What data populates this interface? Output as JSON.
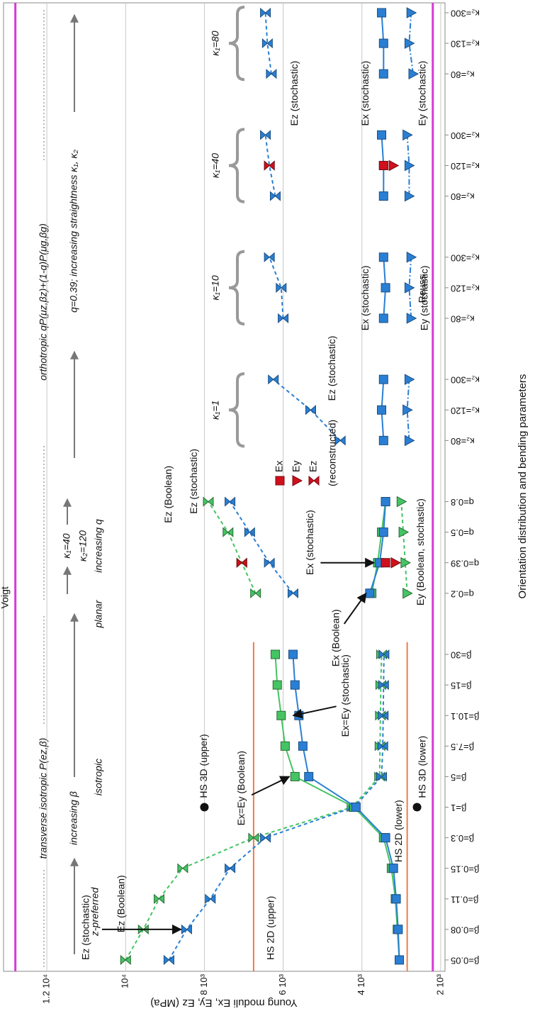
{
  "chart_data": {
    "type": "line",
    "x_label": "Orientation distribution and bending parameters",
    "y_label": "Young moduli Ex, Ey, Ez (MPa)",
    "categories": [
      "β=0.05",
      "β=0.08",
      "β=0.11",
      "β=0.15",
      "β=0.3",
      "β=1",
      "β=5",
      "β=7.5",
      "β=10.1",
      "β=15",
      "β=30",
      null,
      "q=0.2",
      "q=0.39",
      "q=0.5",
      "q=0.8",
      null,
      "κ₂=80",
      "κ₂=120",
      "κ₂=300",
      null,
      "κ₂=80",
      "κ₂=120",
      "κ₂=300",
      null,
      "κ₂=80",
      "κ₂=120",
      "κ₂=300",
      null,
      "κ₂=80",
      "κ₂=130",
      "κ₂=300"
    ],
    "ylim": [
      1890,
      13100
    ],
    "yticks": [
      {
        "value": 2000,
        "label": "2 10³"
      },
      {
        "value": 4000,
        "label": "4 10³"
      },
      {
        "value": 6000,
        "label": "6 10³"
      },
      {
        "value": 8000,
        "label": "8 10³"
      },
      {
        "value": 10000,
        "label": "10⁴"
      },
      {
        "value": 12000,
        "label": "1.2 10⁴"
      }
    ],
    "grid": true,
    "series": [
      {
        "name": "Ez (Boolean)",
        "color": "#45c463",
        "marker": "hourglass",
        "dash": "dashed",
        "values": [
          10000,
          9550,
          9150,
          8550,
          6750,
          4250,
          3550,
          3540,
          3530,
          3520,
          3500,
          null,
          6700,
          7050,
          7400,
          7900,
          null,
          null,
          null,
          null,
          null,
          null,
          null,
          null,
          null,
          null,
          null,
          null,
          null,
          null,
          null,
          null
        ]
      },
      {
        "name": "Ez (stochastic)",
        "color": "#2a7fd4",
        "marker": "hourglass",
        "dash": "dashed",
        "values": [
          8900,
          8450,
          7850,
          7350,
          6450,
          4200,
          3500,
          3470,
          3460,
          3450,
          3440,
          null,
          5750,
          6350,
          6850,
          7350,
          null,
          4550,
          5300,
          6250,
          null,
          6000,
          6050,
          6350,
          null,
          6200,
          6350,
          6450,
          null,
          6300,
          6400,
          6450
        ]
      },
      {
        "name": "Ex=Ey (Boolean)",
        "color": "#45c463",
        "marker": "square",
        "dash": "solid",
        "values": [
          3050,
          3100,
          3150,
          3250,
          3450,
          4200,
          5700,
          5950,
          6050,
          6150,
          6200,
          null,
          3750,
          3600,
          3500,
          3400,
          null,
          null,
          null,
          null,
          null,
          null,
          null,
          null,
          null,
          null,
          null,
          null,
          null,
          null,
          null,
          null
        ]
      },
      {
        "name": "Ex=Ey (stochastic)",
        "color": "#2a7fd4",
        "marker": "square",
        "dash": "solid",
        "values": [
          3050,
          3080,
          3130,
          3200,
          3400,
          4150,
          5350,
          5500,
          5600,
          5700,
          5750,
          null,
          3800,
          3550,
          3450,
          3400,
          null,
          3450,
          3500,
          3450,
          null,
          3450,
          3400,
          3450,
          null,
          3450,
          3450,
          3500,
          null,
          3450,
          3450,
          3500
        ]
      },
      {
        "name": "Ey (Boolean, stochastic)",
        "color": "#45c463",
        "marker": "triangle",
        "dash": "dashed",
        "values": [
          null,
          null,
          null,
          null,
          null,
          null,
          null,
          null,
          null,
          null,
          null,
          null,
          2850,
          2900,
          2950,
          3000,
          null,
          null,
          null,
          null,
          null,
          null,
          null,
          null,
          null,
          null,
          null,
          null,
          null,
          null,
          null,
          null
        ]
      },
      {
        "name": "Ey (stochastic)",
        "color": "#2a7fd4",
        "marker": "triangle",
        "dash": "dashdot",
        "values": [
          null,
          null,
          null,
          null,
          null,
          null,
          null,
          null,
          null,
          null,
          null,
          null,
          null,
          null,
          null,
          null,
          null,
          2800,
          2850,
          2800,
          null,
          2750,
          2800,
          2750,
          null,
          2800,
          2800,
          2850,
          null,
          2700,
          2800,
          2750
        ]
      },
      {
        "name": "Ex",
        "color": "#d0101c",
        "marker": "square",
        "dash": "none",
        "values": [
          null,
          null,
          null,
          null,
          null,
          null,
          null,
          null,
          null,
          null,
          null,
          null,
          null,
          3400,
          null,
          null,
          null,
          null,
          null,
          null,
          null,
          null,
          null,
          null,
          null,
          null,
          3450,
          null,
          null,
          null,
          null,
          null
        ]
      },
      {
        "name": "Ey",
        "color": "#d0101c",
        "marker": "triangle",
        "dash": "none",
        "values": [
          null,
          null,
          null,
          null,
          null,
          null,
          null,
          null,
          null,
          null,
          null,
          null,
          null,
          3150,
          null,
          null,
          null,
          null,
          null,
          null,
          null,
          null,
          null,
          null,
          null,
          null,
          3200,
          null,
          null,
          null,
          null,
          null
        ]
      },
      {
        "name": "Ez",
        "color": "#d0101c",
        "marker": "hourglass",
        "dash": "none",
        "values": [
          null,
          null,
          null,
          null,
          null,
          null,
          null,
          null,
          null,
          null,
          null,
          null,
          null,
          7050,
          null,
          null,
          null,
          null,
          null,
          null,
          null,
          null,
          null,
          null,
          null,
          null,
          6350,
          null,
          null,
          null,
          null,
          null
        ]
      }
    ],
    "legend": {
      "title": "(reconstructed)"
    },
    "reference_lines": [
      {
        "name": "Voigt",
        "value": 12800,
        "color": "#d63ad6"
      },
      {
        "name": "Reuss",
        "value": 2200,
        "color": "#d63ad6"
      },
      {
        "name": "HS 2D (upper)",
        "value": 6750,
        "color": "#f07a4a",
        "from": "β=0.05",
        "to": "β=30"
      },
      {
        "name": "HS 2D (lower)",
        "value": 2850,
        "color": "#f07a4a",
        "from": "β=0.05",
        "to": "β=30"
      }
    ],
    "points": [
      {
        "name": "HS 3D (upper)",
        "category": "β=1",
        "value": 8000
      },
      {
        "name": "HS 3D (lower)",
        "category": "β=1",
        "value": 2600
      }
    ],
    "header": {
      "transverse": "transverse isotropic P(ez,β)",
      "orthotropic": "orthotropic qP(μz,βz)+(1-q)P(μg,βg)",
      "increasing_beta": "increasing β",
      "z_preferred": "z-preferred",
      "isotropic": "isotropic",
      "planar": "planar",
      "kappa1": "κ₁=40",
      "kappa2": "κ₂=120",
      "increasing_q": "increasing q",
      "straightness": "q=0.39; increasing straightness κ₁, κ₂"
    },
    "group_labels": [
      "κ₁=1",
      "κ₁=10",
      "κ₁=40",
      "κ₁=80"
    ],
    "annotations": [
      "Ex (Boolean)",
      "Ex (stochastic)",
      "Ez (Boolean)",
      "Ez (stochastic)",
      "Ez (stochastic)",
      "Ex (stochastic)",
      "Ez (stochastic)",
      "Ex (stochastic)",
      "Ey (stochastic)"
    ]
  }
}
